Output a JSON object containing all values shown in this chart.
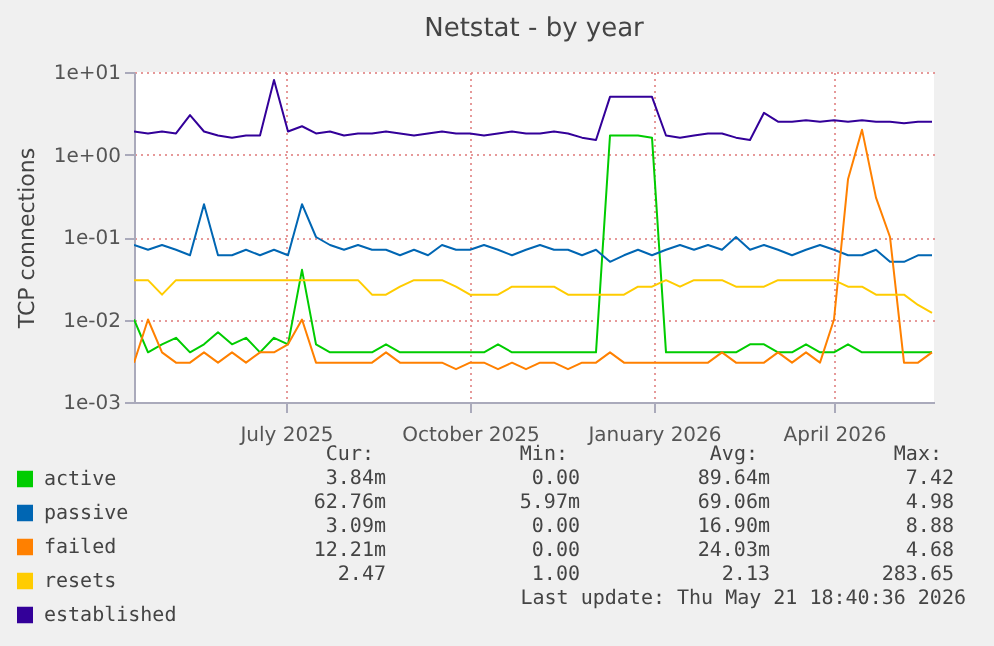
{
  "chart_data": {
    "type": "line",
    "title": "Netstat - by year",
    "ylabel": "TCP connections",
    "log": "y",
    "grid": true,
    "legend": "bottom left",
    "x": [
      "2025-04-16",
      "2025-04-23",
      "2025-04-30",
      "2025-05-07",
      "2025-05-14",
      "2025-05-21",
      "2025-05-28",
      "2025-06-04",
      "2025-06-11",
      "2025-06-18",
      "2025-06-25",
      "2025-07-02",
      "2025-07-09",
      "2025-07-16",
      "2025-07-23",
      "2025-07-30",
      "2025-08-06",
      "2025-08-13",
      "2025-08-20",
      "2025-08-27",
      "2025-09-03",
      "2025-09-10",
      "2025-09-17",
      "2025-09-24",
      "2025-10-01",
      "2025-10-08",
      "2025-10-15",
      "2025-10-22",
      "2025-10-29",
      "2025-11-05",
      "2025-11-12",
      "2025-11-19",
      "2025-11-26",
      "2025-12-03",
      "2025-12-10",
      "2025-12-17",
      "2025-12-24",
      "2025-12-31",
      "2026-01-07",
      "2026-01-14",
      "2026-01-21",
      "2026-01-28",
      "2026-02-04",
      "2026-02-11",
      "2026-02-18",
      "2026-02-25",
      "2026-03-04",
      "2026-03-11",
      "2026-03-18",
      "2026-03-25",
      "2026-04-01",
      "2026-04-08",
      "2026-04-15",
      "2026-04-22",
      "2026-04-29",
      "2026-05-06",
      "2026-05-13",
      "2026-05-20"
    ],
    "xlim": [
      "2025-04-16",
      "2026-05-21"
    ],
    "xticks": [
      {
        "value": "2025-07-01",
        "label": "July 2025"
      },
      {
        "value": "2025-10-01",
        "label": "October 2025"
      },
      {
        "value": "2026-01-01",
        "label": "January 2026"
      },
      {
        "value": "2026-04-01",
        "label": "April 2026"
      }
    ],
    "ylim": [
      0.001,
      10
    ],
    "yticks": [
      {
        "value": 0.001,
        "label": "1e-03"
      },
      {
        "value": 0.01,
        "label": "1e-02"
      },
      {
        "value": 0.1,
        "label": "1e-01"
      },
      {
        "value": 1,
        "label": "1e+00"
      },
      {
        "value": 10,
        "label": "1e+01"
      }
    ],
    "series": [
      {
        "name": "active",
        "color": "#00cc00",
        "values": [
          0.01,
          0.004,
          0.005,
          0.006,
          0.004,
          0.005,
          0.007,
          0.005,
          0.006,
          0.004,
          0.006,
          0.005,
          0.04,
          0.005,
          0.004,
          0.004,
          0.004,
          0.004,
          0.005,
          0.004,
          0.004,
          0.004,
          0.004,
          0.004,
          0.004,
          0.004,
          0.005,
          0.004,
          0.004,
          0.004,
          0.004,
          0.004,
          0.004,
          0.004,
          1.7,
          1.7,
          1.7,
          1.6,
          0.004,
          0.004,
          0.004,
          0.004,
          0.004,
          0.004,
          0.005,
          0.005,
          0.004,
          0.004,
          0.005,
          0.004,
          0.004,
          0.005,
          0.004,
          0.004,
          0.004,
          0.004,
          0.004,
          0.004
        ]
      },
      {
        "name": "passive",
        "color": "#0066b3",
        "values": [
          0.08,
          0.07,
          0.08,
          0.07,
          0.06,
          0.25,
          0.06,
          0.06,
          0.07,
          0.06,
          0.07,
          0.06,
          0.25,
          0.1,
          0.08,
          0.07,
          0.08,
          0.07,
          0.07,
          0.06,
          0.07,
          0.06,
          0.08,
          0.07,
          0.07,
          0.08,
          0.07,
          0.06,
          0.07,
          0.08,
          0.07,
          0.07,
          0.06,
          0.07,
          0.05,
          0.06,
          0.07,
          0.06,
          0.07,
          0.08,
          0.07,
          0.08,
          0.07,
          0.1,
          0.07,
          0.08,
          0.07,
          0.06,
          0.07,
          0.08,
          0.07,
          0.06,
          0.06,
          0.07,
          0.05,
          0.05,
          0.06,
          0.06
        ]
      },
      {
        "name": "failed",
        "color": "#ff8000",
        "values": [
          0.003,
          0.01,
          0.004,
          0.003,
          0.003,
          0.004,
          0.003,
          0.004,
          0.003,
          0.004,
          0.004,
          0.005,
          0.01,
          0.003,
          0.003,
          0.003,
          0.003,
          0.003,
          0.004,
          0.003,
          0.003,
          0.003,
          0.003,
          0.0025,
          0.003,
          0.003,
          0.0025,
          0.003,
          0.0025,
          0.003,
          0.003,
          0.0025,
          0.003,
          0.003,
          0.004,
          0.003,
          0.003,
          0.003,
          0.003,
          0.003,
          0.003,
          0.003,
          0.004,
          0.003,
          0.003,
          0.003,
          0.004,
          0.003,
          0.004,
          0.003,
          0.01,
          0.5,
          2,
          0.3,
          0.1,
          0.003,
          0.003,
          0.004
        ]
      },
      {
        "name": "resets",
        "color": "#ffcc00",
        "values": [
          0.03,
          0.03,
          0.02,
          0.03,
          0.03,
          0.03,
          0.03,
          0.03,
          0.03,
          0.03,
          0.03,
          0.03,
          0.03,
          0.03,
          0.03,
          0.03,
          0.03,
          0.02,
          0.02,
          0.025,
          0.03,
          0.03,
          0.03,
          0.025,
          0.02,
          0.02,
          0.02,
          0.025,
          0.025,
          0.025,
          0.025,
          0.02,
          0.02,
          0.02,
          0.02,
          0.02,
          0.025,
          0.025,
          0.03,
          0.025,
          0.03,
          0.03,
          0.03,
          0.025,
          0.025,
          0.025,
          0.03,
          0.03,
          0.03,
          0.03,
          0.03,
          0.025,
          0.025,
          0.02,
          0.02,
          0.02,
          0.015,
          0.012
        ]
      },
      {
        "name": "established",
        "color": "#330099",
        "values": [
          1.9,
          1.8,
          1.9,
          1.8,
          3.0,
          1.9,
          1.7,
          1.6,
          1.7,
          1.7,
          8,
          1.9,
          2.2,
          1.8,
          1.9,
          1.7,
          1.8,
          1.8,
          1.9,
          1.8,
          1.7,
          1.8,
          1.9,
          1.8,
          1.8,
          1.7,
          1.8,
          1.9,
          1.8,
          1.8,
          1.9,
          1.8,
          1.6,
          1.5,
          5,
          5,
          5,
          5,
          1.7,
          1.6,
          1.7,
          1.8,
          1.8,
          1.6,
          1.5,
          3.2,
          2.5,
          2.5,
          2.6,
          2.5,
          2.6,
          2.5,
          2.6,
          2.5,
          2.5,
          2.4,
          2.5,
          2.5
        ]
      }
    ],
    "annotations": [
      "Cur:",
      "Min:",
      "Avg:",
      "Max:",
      "3.84m",
      "0.00",
      "89.64m",
      "7.42",
      "62.76m",
      "5.97m",
      "69.06m",
      "4.98",
      "3.09m",
      "0.00",
      "16.90m",
      "8.88",
      "12.21m",
      "0.00",
      "24.03m",
      "4.68",
      "2.47",
      "1.00",
      "2.13",
      "283.65",
      "Last update: Thu May 21 18:40:36 2026"
    ]
  }
}
